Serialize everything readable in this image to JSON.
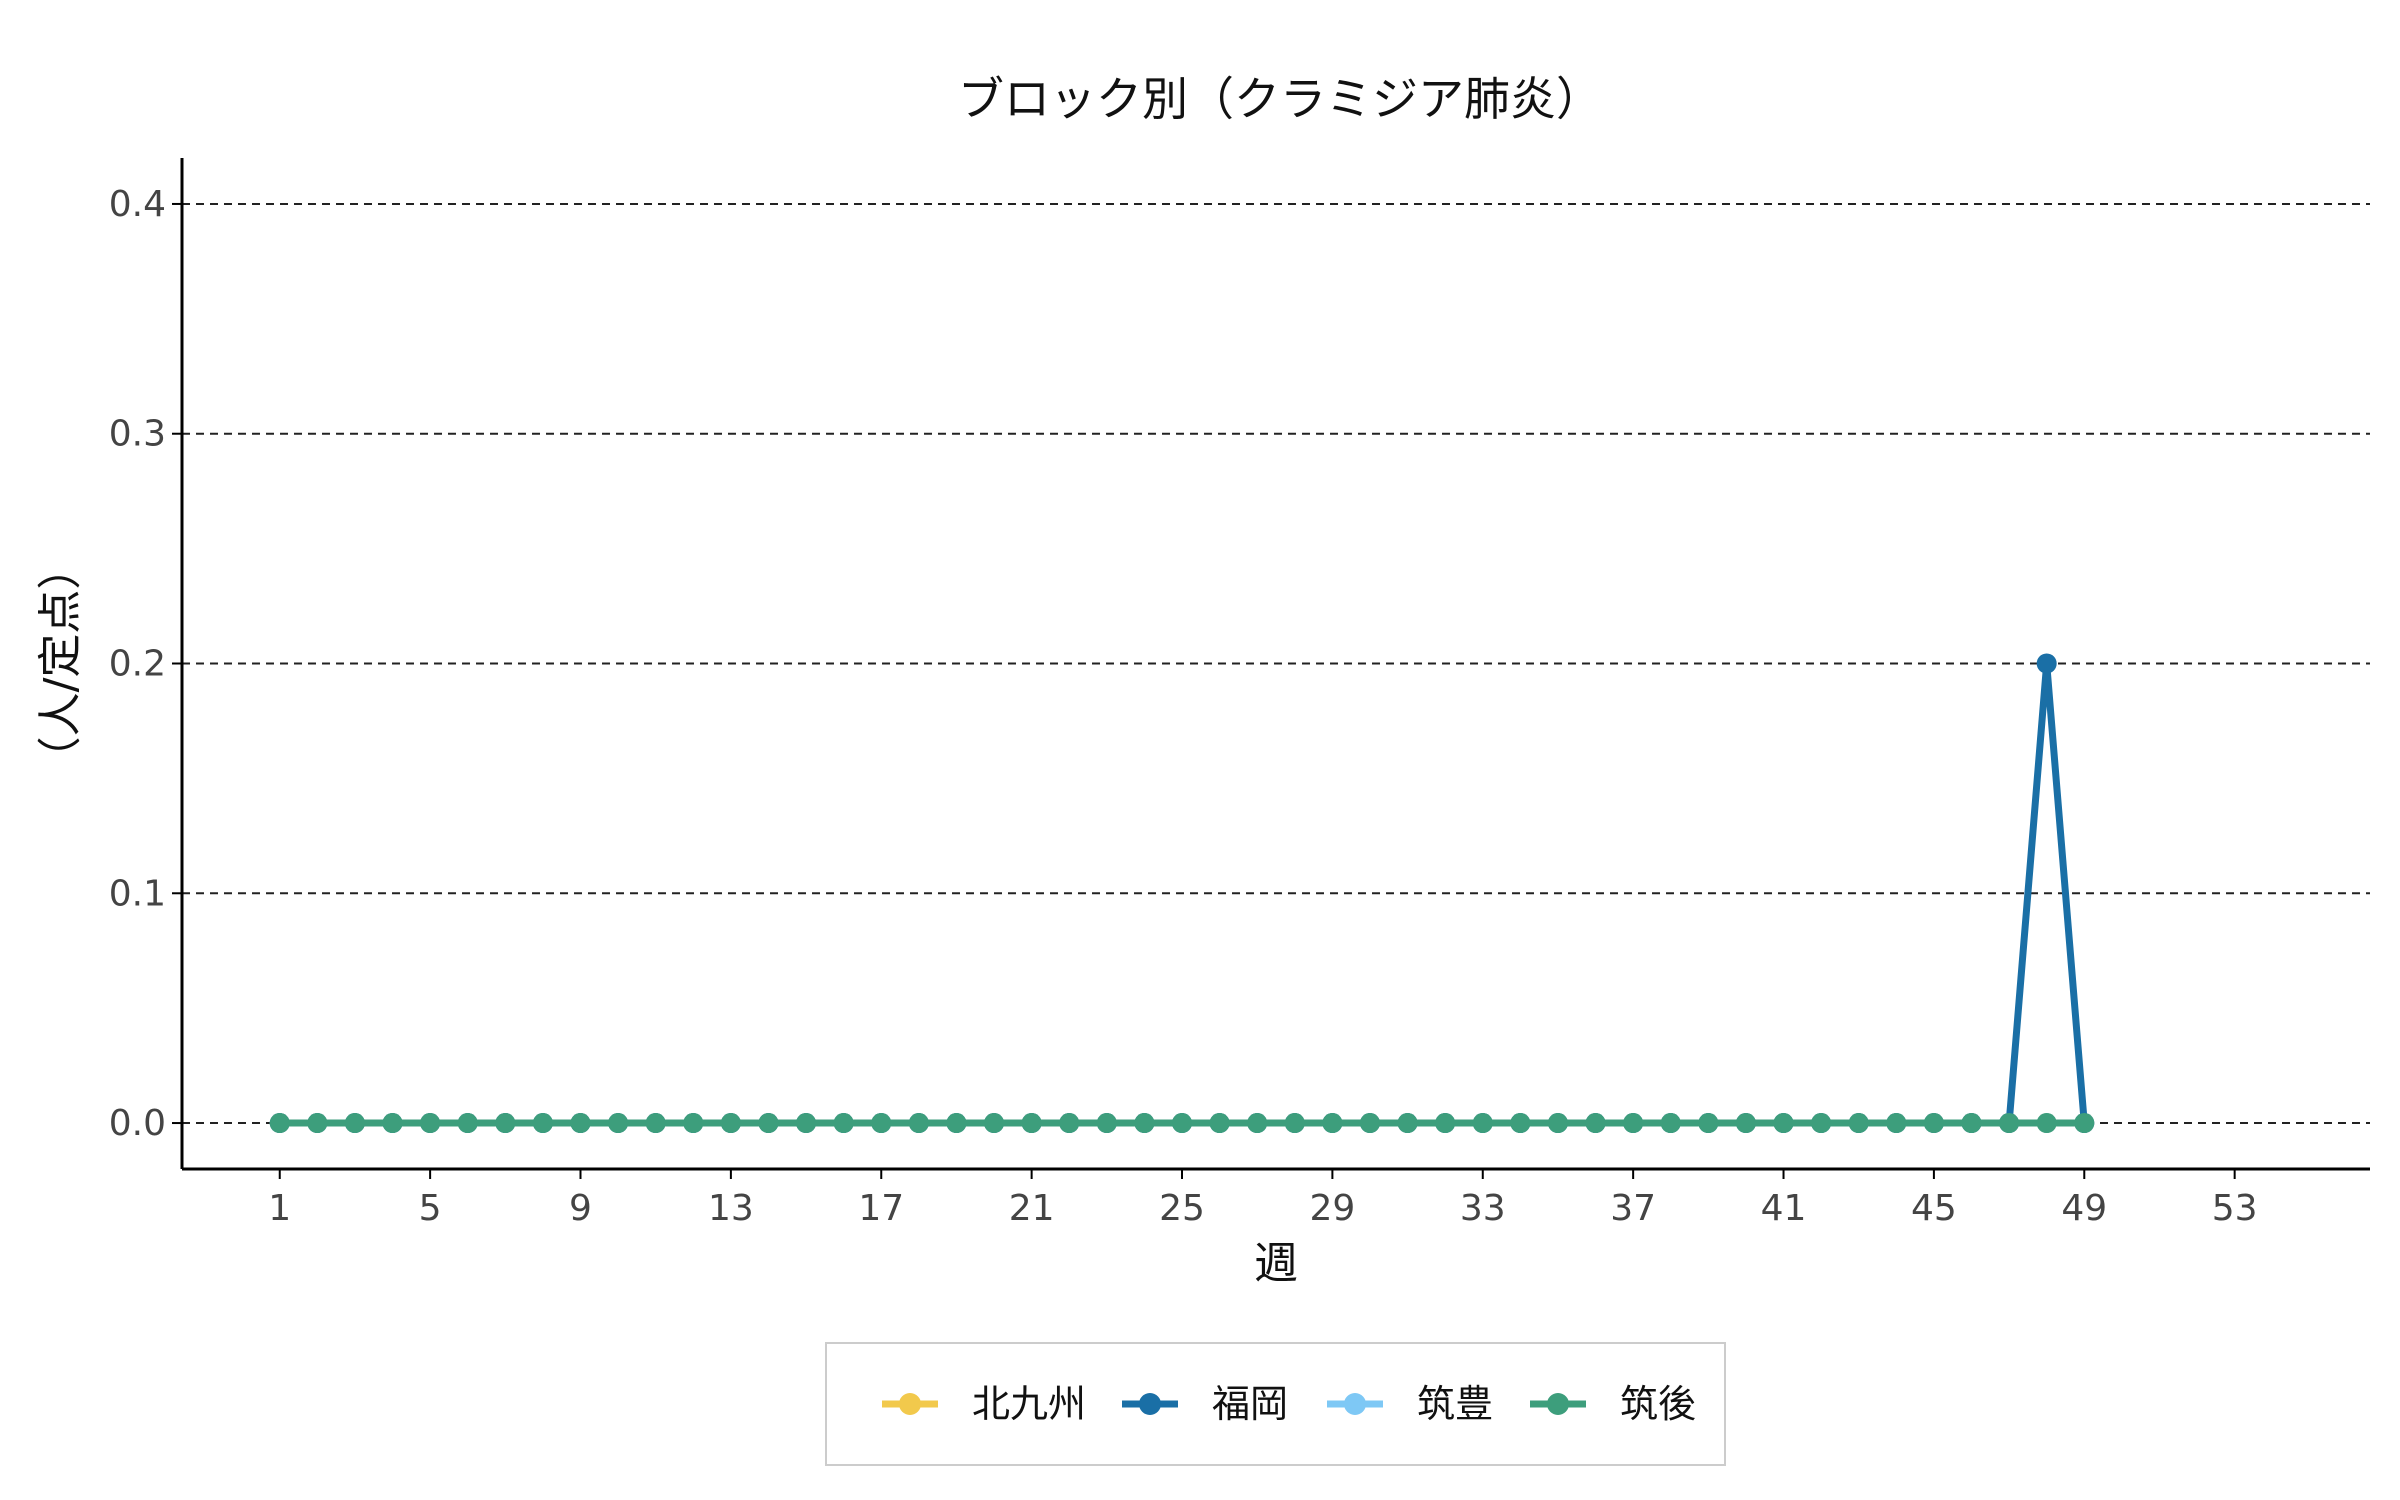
{
  "chart_data": {
    "type": "line",
    "title": "ブロック別（クラミジア肺炎）",
    "xlabel": "週",
    "ylabel": "（人/定点）",
    "xlim": [
      -1.6,
      56.6
    ],
    "ylim": [
      -0.02,
      0.42
    ],
    "x_ticks": [
      1,
      5,
      9,
      13,
      17,
      21,
      25,
      29,
      33,
      37,
      41,
      45,
      49,
      53
    ],
    "y_ticks": [
      0.0,
      0.1,
      0.2,
      0.3,
      0.4
    ],
    "y_tick_labels": [
      "0.0",
      "0.1",
      "0.2",
      "0.3",
      "0.4"
    ],
    "grid": "horizontal dashed",
    "legend_position": "bottom",
    "x": [
      1,
      2,
      3,
      4,
      5,
      6,
      7,
      8,
      9,
      10,
      11,
      12,
      13,
      14,
      15,
      16,
      17,
      18,
      19,
      20,
      21,
      22,
      23,
      24,
      25,
      26,
      27,
      28,
      29,
      30,
      31,
      32,
      33,
      34,
      35,
      36,
      37,
      38,
      39,
      40,
      41,
      42,
      43,
      44,
      45,
      46,
      47,
      48,
      49
    ],
    "series": [
      {
        "name": "北九州",
        "color": "#f2c94c",
        "values": [
          0,
          0,
          0,
          0,
          0,
          0,
          0,
          0,
          0,
          0,
          0,
          0,
          0,
          0,
          0,
          0,
          0,
          0,
          0,
          0,
          0,
          0,
          0,
          0,
          0,
          0,
          0,
          0,
          0,
          0,
          0,
          0,
          0,
          0,
          0,
          0,
          0,
          0,
          0,
          0,
          0,
          0,
          0,
          0,
          0,
          0,
          0,
          0,
          0
        ]
      },
      {
        "name": "福岡",
        "color": "#1a6fa6",
        "values": [
          0,
          0,
          0,
          0,
          0,
          0,
          0,
          0,
          0,
          0,
          0,
          0,
          0,
          0,
          0,
          0,
          0,
          0,
          0,
          0,
          0,
          0,
          0,
          0,
          0,
          0,
          0,
          0,
          0,
          0,
          0,
          0,
          0,
          0,
          0,
          0,
          0,
          0,
          0,
          0,
          0,
          0,
          0,
          0,
          0,
          0,
          0,
          0.2,
          0
        ]
      },
      {
        "name": "筑豊",
        "color": "#7ec8f5",
        "values": [
          0,
          0,
          0,
          0,
          0,
          0,
          0,
          0,
          0,
          0,
          0,
          0,
          0,
          0,
          0,
          0,
          0,
          0,
          0,
          0,
          0,
          0,
          0,
          0,
          0,
          0,
          0,
          0,
          0,
          0,
          0,
          0,
          0,
          0,
          0,
          0,
          0,
          0,
          0,
          0,
          0,
          0,
          0,
          0,
          0,
          0,
          0,
          0,
          0
        ]
      },
      {
        "name": "筑後",
        "color": "#3d9e7c",
        "values": [
          0,
          0,
          0,
          0,
          0,
          0,
          0,
          0,
          0,
          0,
          0,
          0,
          0,
          0,
          0,
          0,
          0,
          0,
          0,
          0,
          0,
          0,
          0,
          0,
          0,
          0,
          0,
          0,
          0,
          0,
          0,
          0,
          0,
          0,
          0,
          0,
          0,
          0,
          0,
          0,
          0,
          0,
          0,
          0,
          0,
          0,
          0,
          0,
          0
        ]
      }
    ]
  }
}
